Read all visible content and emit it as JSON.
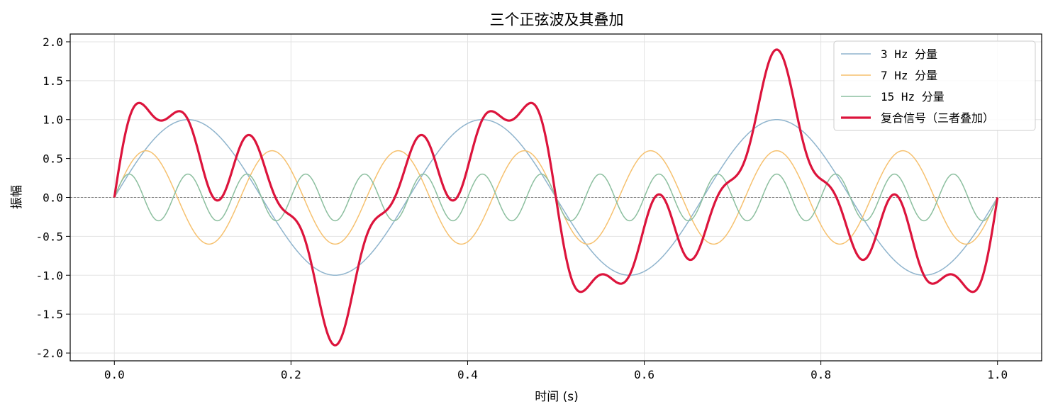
{
  "chart_data": {
    "type": "line",
    "title": "三个正弦波及其叠加",
    "xlabel": "时间 (s)",
    "ylabel": "振幅",
    "xlim": [
      -0.05,
      1.05
    ],
    "ylim": [
      -2.1,
      2.1
    ],
    "x_ticks": [
      0.0,
      0.2,
      0.4,
      0.6,
      0.8,
      1.0
    ],
    "x_tick_labels": [
      "0.0",
      "0.2",
      "0.4",
      "0.6",
      "0.8",
      "1.0"
    ],
    "y_ticks": [
      -2.0,
      -1.5,
      -1.0,
      -0.5,
      0.0,
      0.5,
      1.0,
      1.5,
      2.0
    ],
    "y_tick_labels": [
      "-2.0",
      "-1.5",
      "-1.0",
      "-0.5",
      "0.0",
      "0.5",
      "1.0",
      "1.5",
      "2.0"
    ],
    "grid": true,
    "reference_line": {
      "y": 0.0,
      "style": "dashed",
      "color": "#808080"
    },
    "legend_position": "top-right",
    "series": [
      {
        "name": "3 Hz 分量",
        "frequency_hz": 3,
        "amplitude": 1.0,
        "formula": "1.0*sin(2*pi*3*t)",
        "color": "#8fb4cd",
        "width": "thin"
      },
      {
        "name": "7 Hz 分量",
        "frequency_hz": 7,
        "amplitude": 0.6,
        "formula": "0.6*sin(2*pi*7*t)",
        "color": "#f6c16f",
        "width": "thin"
      },
      {
        "name": "15 Hz 分量",
        "frequency_hz": 15,
        "amplitude": 0.3,
        "formula": "0.3*sin(2*pi*15*t)",
        "color": "#8cbf9f",
        "width": "thin"
      },
      {
        "name": "复合信号（三者叠加）",
        "formula": "sum of the three components",
        "color": "#dc143c",
        "width": "thick"
      }
    ],
    "x_range_data": [
      0.0,
      1.0
    ]
  }
}
